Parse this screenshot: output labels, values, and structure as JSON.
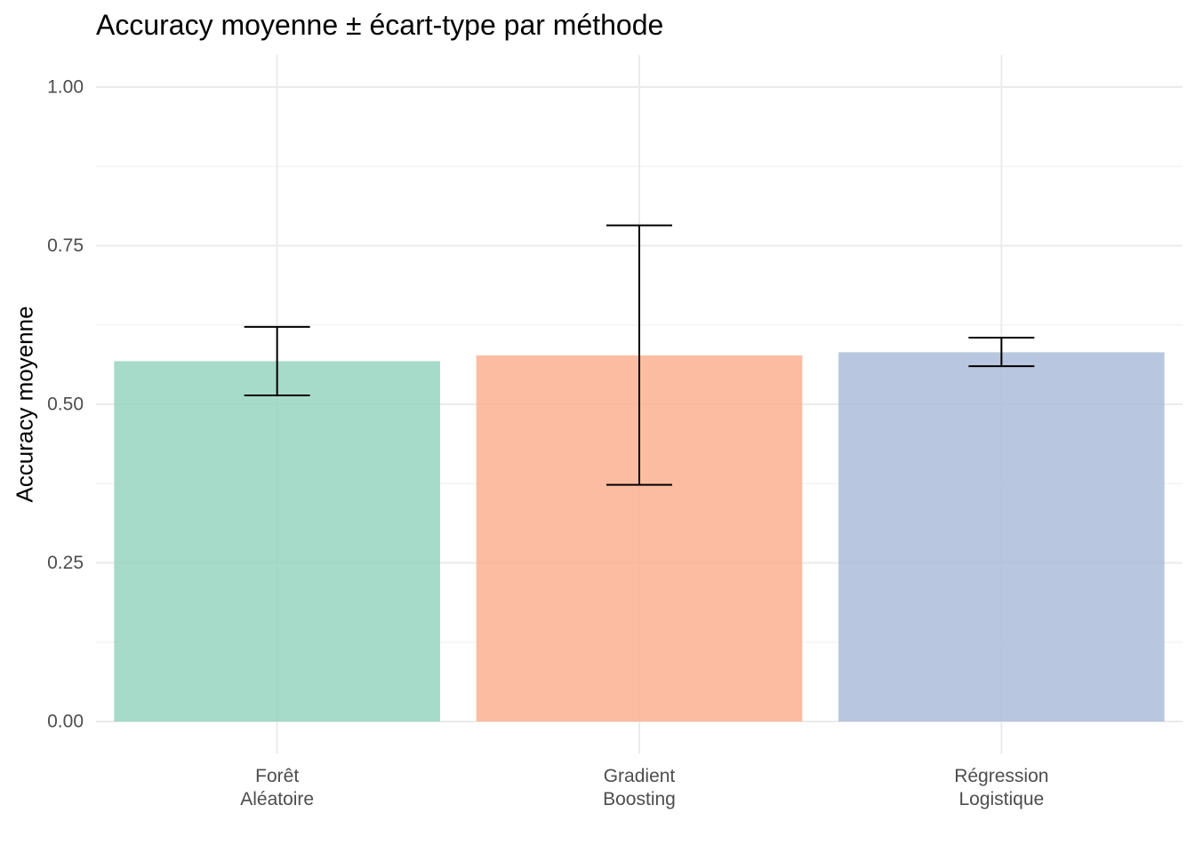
{
  "chart_data": {
    "type": "bar",
    "title": "Accuracy moyenne ± écart-type par méthode",
    "xlabel": "",
    "ylabel": "Accuracy moyenne",
    "ylim": [
      0,
      1
    ],
    "yticks": [
      "0.00",
      "0.25",
      "0.50",
      "0.75",
      "1.00"
    ],
    "categories": [
      [
        "Forêt",
        "Aléatoire"
      ],
      [
        "Gradient",
        "Boosting"
      ],
      [
        "Régression",
        "Logistique"
      ]
    ],
    "values": [
      0.568,
      0.577,
      0.582
    ],
    "error_low": [
      0.514,
      0.373,
      0.56
    ],
    "error_high": [
      0.622,
      0.782,
      0.605
    ],
    "colors": [
      "#96d4c0",
      "#fab091",
      "#adbcd9"
    ],
    "grid": true,
    "legend": "none"
  }
}
